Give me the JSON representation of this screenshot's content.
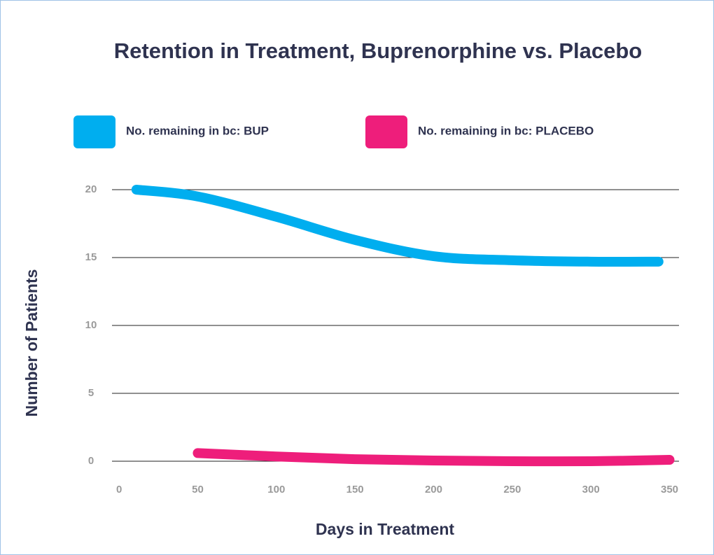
{
  "chart_data": {
    "type": "line",
    "title": "Retention in Treatment, Buprenorphine vs. Placebo",
    "x_label": "Days in Treatment",
    "y_label": "Number of Patients",
    "series": [
      {
        "name": "No. remaining in bc: BUP",
        "color": "#00aeef",
        "x": [
          11,
          50,
          100,
          150,
          200,
          250,
          300,
          343
        ],
        "values": [
          20,
          19.5,
          18,
          16.3,
          15.1,
          14.8,
          14.7,
          14.7
        ]
      },
      {
        "name": "No. remaining in bc: PLACEBO",
        "color": "#ee1e7b",
        "x": [
          50,
          100,
          150,
          200,
          250,
          300,
          350
        ],
        "values": [
          0.6,
          0.35,
          0.15,
          0.05,
          0,
          0,
          0.1
        ]
      }
    ],
    "xlim": [
      -4.5,
      356
    ],
    "xticks": [
      0,
      50,
      100,
      150,
      200,
      250,
      300,
      350
    ],
    "ylim": [
      0,
      20
    ],
    "yticks": [
      0,
      5,
      10,
      15,
      20
    ],
    "grid": true,
    "legend": "top"
  }
}
